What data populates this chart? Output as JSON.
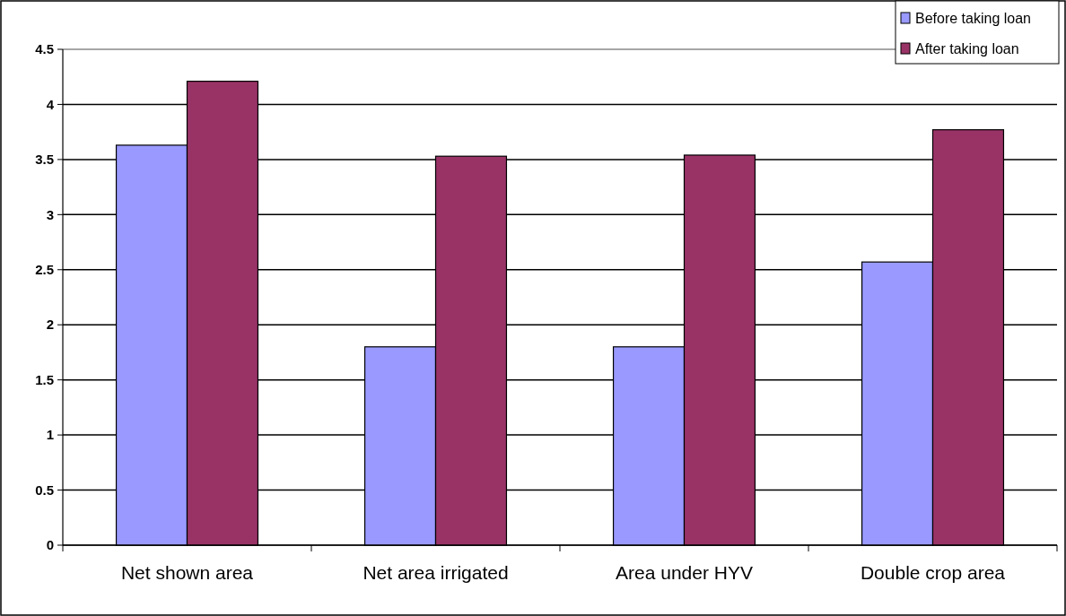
{
  "chart_data": {
    "type": "bar",
    "categories": [
      "Net shown area",
      "Net area irrigated",
      "Area under HYV",
      "Double crop area"
    ],
    "series": [
      {
        "name": "Before taking loan",
        "color": "#9999ff",
        "values": [
          3.63,
          1.8,
          1.8,
          2.57
        ]
      },
      {
        "name": "After taking loan",
        "color": "#993366",
        "values": [
          4.21,
          3.53,
          3.54,
          3.77
        ]
      }
    ],
    "ylim": [
      0,
      4.5
    ],
    "yticks": [
      0,
      0.5,
      1,
      1.5,
      2,
      2.5,
      3,
      3.5,
      4,
      4.5
    ],
    "grid": "y",
    "legend": "top right"
  }
}
